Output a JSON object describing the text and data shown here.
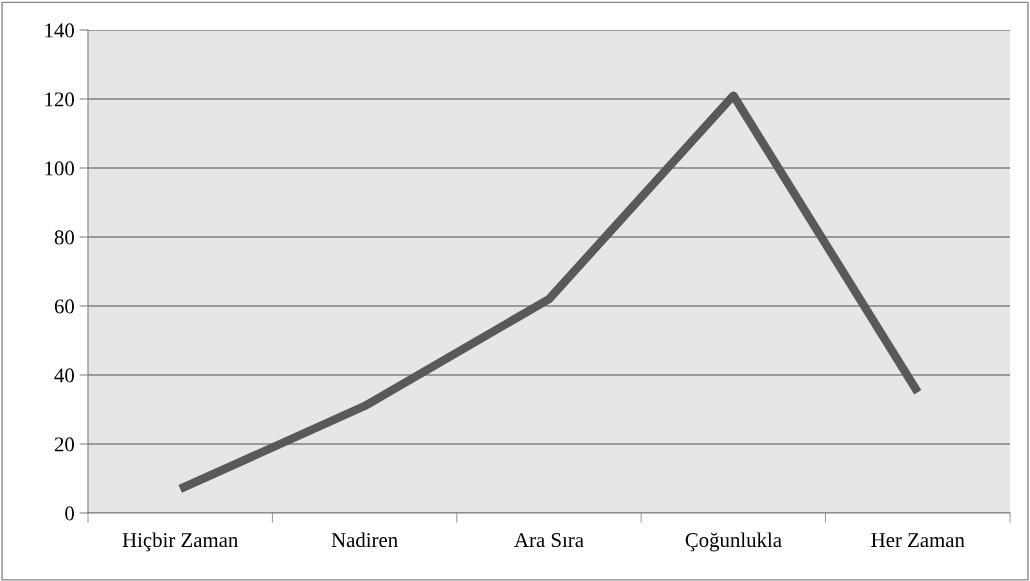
{
  "chart_data": {
    "type": "line",
    "categories": [
      "Hiçbir Zaman",
      "Nadiren",
      "Ara Sıra",
      "Çoğunlukla",
      "Her Zaman"
    ],
    "series": [
      {
        "color": "#595959",
        "values": [
          7,
          31,
          62,
          121,
          35
        ]
      }
    ],
    "ylim": [
      0,
      140
    ],
    "yticks": [
      0,
      20,
      40,
      60,
      80,
      100,
      120,
      140
    ],
    "grid": "y",
    "marker": "none",
    "line_style": "solid"
  }
}
